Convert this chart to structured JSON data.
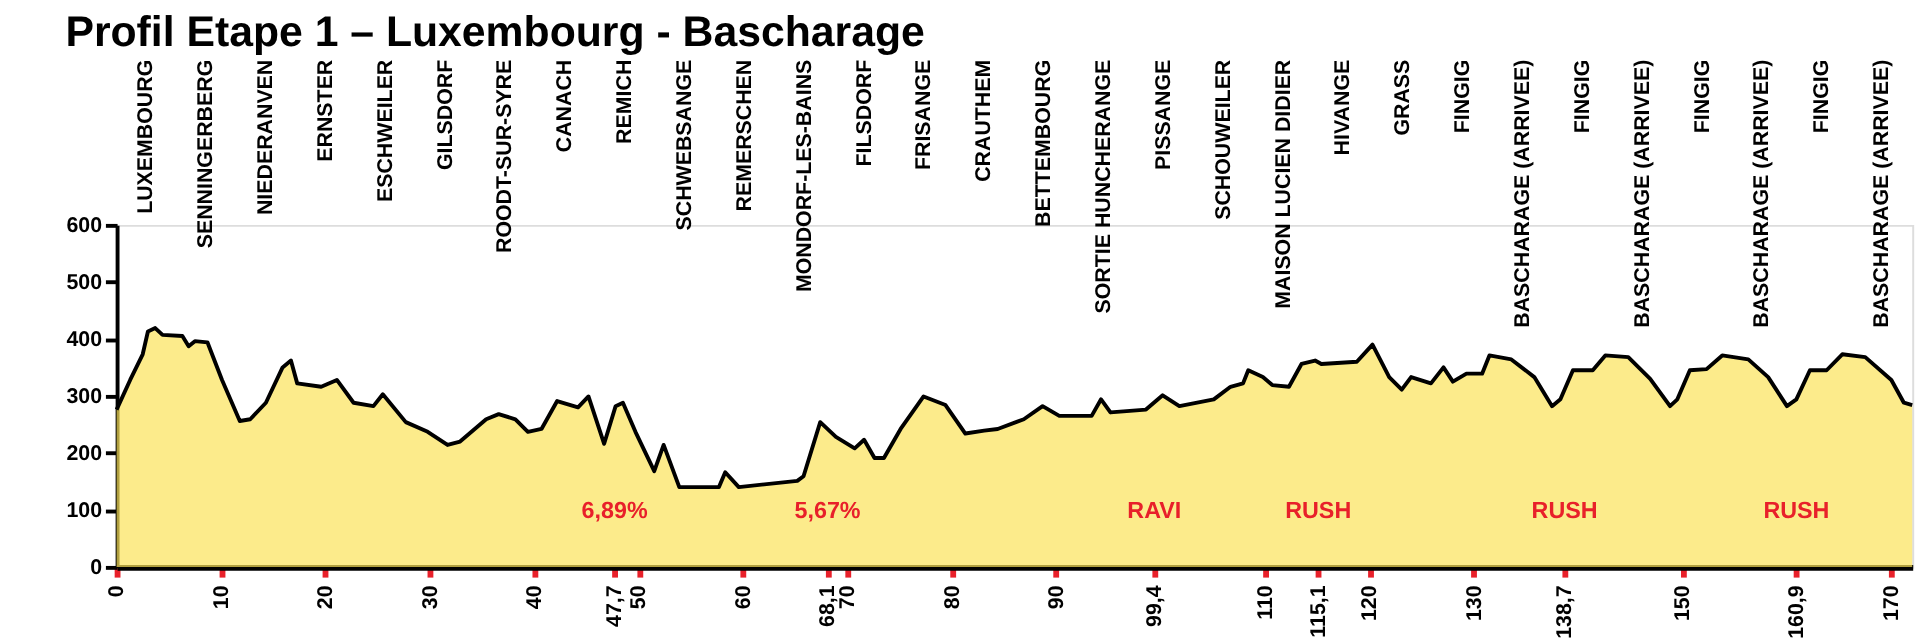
{
  "chart_data": {
    "type": "area",
    "title": "Profil Etape 1 – Luxembourg - Bascharage",
    "series": [
      {
        "color": "#fbe35a",
        "x": [
          0,
          1.3,
          2.5,
          3.0,
          3.7,
          4.4,
          6.3,
          6.9,
          7.5,
          8.7,
          10.1,
          11.8,
          12.8,
          14.3,
          15.9,
          16.7,
          17.3,
          19.6,
          21.1,
          22.7,
          24.6,
          25.5,
          27.7,
          29.8,
          31.7,
          32.9,
          35.4,
          36.6,
          38.2,
          39.4,
          40.7,
          42.2,
          44.2,
          45.2,
          46.7,
          47.8,
          48.5,
          49.7,
          51.5,
          52.4,
          53.9,
          57.7,
          58.3,
          59.6,
          65.2,
          65.8,
          67.4,
          68.9,
          70.7,
          71.6,
          72.6,
          73.5,
          75.1,
          77.3,
          79.4,
          81.3,
          83.1,
          84.4,
          86.9,
          88.7,
          90.3,
          93.4,
          94.3,
          95.2,
          98.6,
          100.2,
          101.8,
          105.1,
          106.7,
          107.9,
          108.4,
          109.8,
          110.7,
          112.3,
          113.5,
          114.8,
          115.4,
          118.8,
          120.3,
          121.9,
          123.1,
          124.0,
          125.9,
          127.1,
          128.0,
          129.3,
          130.8,
          131.5,
          133.6,
          135.8,
          137.5,
          138.3,
          139.5,
          141.4,
          142.6,
          144.8,
          146.9,
          148.8,
          149.5,
          150.7,
          152.3,
          153.8,
          156.3,
          158.2,
          160.0,
          160.9,
          162.2,
          163.8,
          165.3,
          167.5,
          170.0,
          171.2,
          172.0
        ],
        "values": [
          276,
          328,
          373,
          413,
          419,
          407,
          405,
          387,
          396,
          394,
          328,
          256,
          259,
          288,
          350,
          362,
          322,
          316,
          328,
          288,
          282,
          303,
          254,
          237,
          214,
          220,
          259,
          268,
          259,
          237,
          242,
          291,
          280,
          299,
          216,
          282,
          288,
          237,
          168,
          214,
          140,
          140,
          166,
          140,
          151,
          159,
          254,
          228,
          208,
          223,
          191,
          191,
          242,
          299,
          284,
          234,
          239,
          242,
          259,
          282,
          265,
          265,
          294,
          271,
          276,
          301,
          282,
          294,
          316,
          322,
          345,
          333,
          319,
          316,
          356,
          362,
          356,
          360,
          390,
          333,
          311,
          333,
          322,
          350,
          325,
          339,
          339,
          371,
          364,
          333,
          282,
          294,
          345,
          345,
          371,
          368,
          330,
          282,
          294,
          345,
          347,
          371,
          364,
          333,
          282,
          294,
          345,
          345,
          373,
          368,
          328,
          288,
          284
        ]
      }
    ],
    "xlim": [
      0,
      172
    ],
    "ylim": [
      0,
      600
    ],
    "xticks": [
      0,
      10,
      20,
      30,
      40,
      {
        "value": 47.7,
        "label": "47,7"
      },
      50,
      60,
      {
        "value": 68.1,
        "label": "68,1"
      },
      70,
      80,
      90,
      {
        "value": 99.4,
        "label": "99,4"
      },
      110,
      {
        "value": 115.1,
        "label": "115,1"
      },
      120,
      130,
      {
        "value": 138.7,
        "label": "138,7"
      },
      150,
      {
        "value": 160.9,
        "label": "160,9"
      },
      170
    ],
    "yticks": [
      0,
      100,
      200,
      300,
      400,
      500,
      600
    ],
    "annotations": [
      "LUXEMBOURG",
      "SENNINGERBERG",
      "NIEDERANVEN",
      "ERNSTER",
      "ESCHWEILER",
      "GILSDORF",
      "ROODT-SUR-SYRE",
      "CANACH",
      "REMICH",
      "SCHWEBSANGE",
      "REMERSCHEN",
      "MONDORF-LES-BAINS",
      "FILSDORF",
      "FRISANGE",
      "CRAUTHEM",
      "BETTEMBOURG",
      "SORTIE HUNCHERANGE",
      "PISSANGE",
      "SCHOUWEILER",
      "MAISON LUCIEN DIDIER",
      "HIVANGE",
      "GRASS",
      "FINGIG",
      "BASCHARAGE (ARRIVEE)",
      "FINGIG",
      "BASCHARAGE (ARRIVEE)",
      "FINGIG",
      "BASCHARAGE (ARRIVEE)",
      "FINGIG",
      "BASCHARAGE (ARRIVEE)",
      "6,89%",
      "5,67%",
      "RAVI",
      "RUSH",
      "RUSH",
      "RUSH"
    ],
    "grid": false,
    "line_style": "solid"
  }
}
